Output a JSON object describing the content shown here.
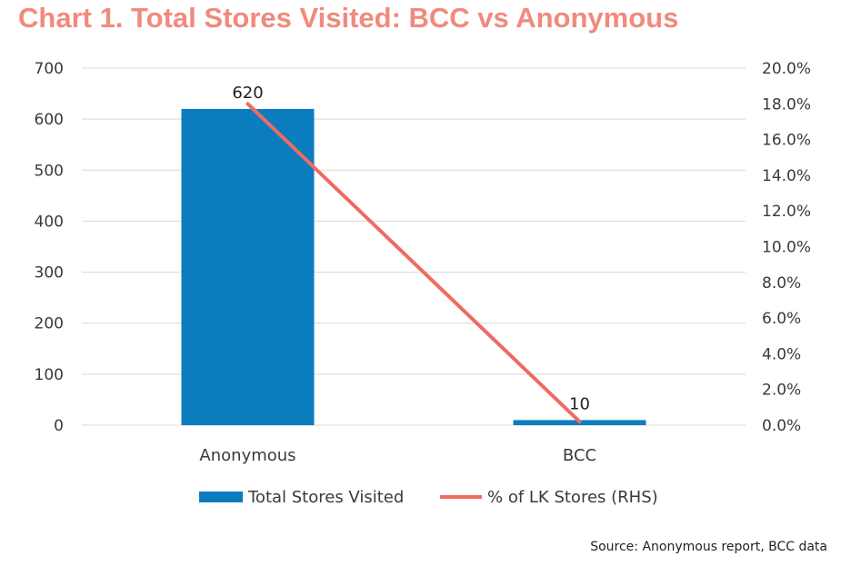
{
  "title": "Chart 1. Total Stores Visited: BCC vs Anonymous",
  "source": "Source: Anonymous report, BCC data",
  "colors": {
    "bar": "#0b7dbf",
    "line": "#ee6b62",
    "title": "#f08a7e",
    "grid": "#d9d9d9"
  },
  "chart_data": {
    "type": "bar",
    "categories": [
      "Anonymous",
      "BCC"
    ],
    "series": [
      {
        "name": "Total Stores Visited",
        "type": "bar",
        "axis": "left",
        "values": [
          620,
          10
        ],
        "data_labels": [
          "620",
          "10"
        ]
      },
      {
        "name": "% of LK Stores (RHS)",
        "type": "line",
        "axis": "right",
        "values": [
          18.0,
          0.2
        ]
      }
    ],
    "y_left": {
      "range": [
        0,
        700
      ],
      "ticks": [
        "0",
        "100",
        "200",
        "300",
        "400",
        "500",
        "600",
        "700"
      ]
    },
    "y_right": {
      "range": [
        0,
        20
      ],
      "ticks": [
        "0.0%",
        "2.0%",
        "4.0%",
        "6.0%",
        "8.0%",
        "10.0%",
        "12.0%",
        "14.0%",
        "16.0%",
        "18.0%",
        "20.0%"
      ]
    },
    "grid": true,
    "legend": "bottom"
  }
}
